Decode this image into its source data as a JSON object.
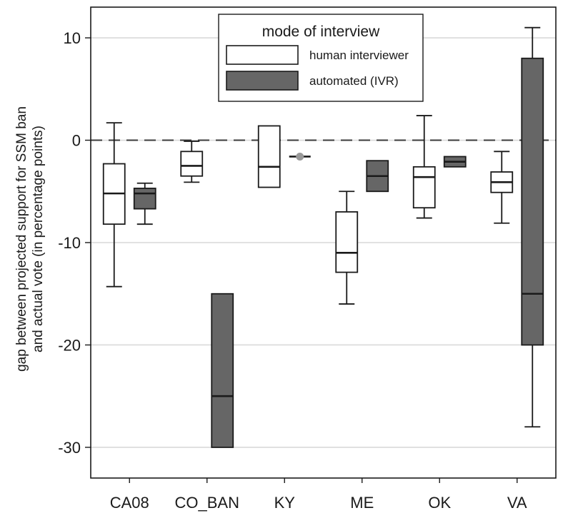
{
  "chart_data": {
    "type": "box",
    "ylabel_line1": "gap between projected support for SSM ban",
    "ylabel_line2": "and actual vote (in percentage points)",
    "ylim": [
      -33,
      13
    ],
    "yticks": [
      10,
      0,
      -10,
      -20,
      -30
    ],
    "ytick_labels": [
      "10",
      "0",
      "-10",
      "-20",
      "-30"
    ],
    "grid": true,
    "reference_line": 0,
    "categories": [
      "CA08",
      "CO_BAN",
      "KY",
      "ME",
      "OK",
      "VA"
    ],
    "legend": {
      "title": "mode of interview",
      "placement": "top-center",
      "entries": [
        "human interviewer",
        "automated (IVR)"
      ]
    },
    "colors": {
      "human": "#ffffff",
      "automated": "#666666",
      "outlier": "#999999",
      "grid": "#d9d9d9"
    },
    "series": [
      {
        "name": "human interviewer",
        "boxes": [
          {
            "category": "CA08",
            "min": -14.3,
            "q1": -8.2,
            "median": -5.2,
            "q3": -2.3,
            "max": 1.7
          },
          {
            "category": "CO_BAN",
            "min": -4.1,
            "q1": -3.5,
            "median": -2.5,
            "q3": -1.1,
            "max": -0.1
          },
          {
            "category": "KY",
            "min": -4.6,
            "q1": -4.6,
            "median": -2.6,
            "q3": 1.4,
            "max": 1.4
          },
          {
            "category": "ME",
            "min": -16.0,
            "q1": -12.9,
            "median": -11.0,
            "q3": -7.0,
            "max": -5.0
          },
          {
            "category": "OK",
            "min": -7.6,
            "q1": -6.6,
            "median": -3.6,
            "q3": -2.6,
            "max": 2.4
          },
          {
            "category": "VA",
            "min": -8.1,
            "q1": -5.1,
            "median": -4.1,
            "q3": -3.1,
            "max": -1.1
          }
        ]
      },
      {
        "name": "automated (IVR)",
        "boxes": [
          {
            "category": "CA08",
            "min": -8.2,
            "q1": -6.7,
            "median": -5.2,
            "q3": -4.7,
            "max": -4.2
          },
          {
            "category": "CO_BAN",
            "min": -30.0,
            "q1": -30.0,
            "median": -25.0,
            "q3": -15.0,
            "max": -15.0
          },
          {
            "category": "KY",
            "min": -1.6,
            "q1": -1.6,
            "median": -1.6,
            "q3": -1.6,
            "max": -1.6,
            "outliers": [
              -1.6
            ]
          },
          {
            "category": "ME",
            "min": -5.0,
            "q1": -5.0,
            "median": -3.5,
            "q3": -2.0,
            "max": -2.0
          },
          {
            "category": "OK",
            "min": -2.6,
            "q1": -2.6,
            "median": -2.1,
            "q3": -1.6,
            "max": -1.6
          },
          {
            "category": "VA",
            "min": -28.0,
            "q1": -20.0,
            "median": -15.0,
            "q3": 8.0,
            "max": 11.0
          }
        ]
      }
    ]
  }
}
